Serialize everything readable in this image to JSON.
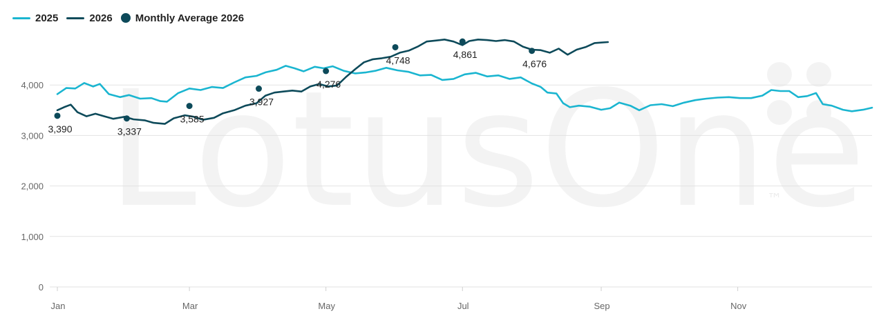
{
  "legend": {
    "label_2025": "2025",
    "label_2026": "2026",
    "label_avg": "Monthly Average 2026"
  },
  "watermark": {
    "text": "LotusOne",
    "tm": "™"
  },
  "colors": {
    "series_2025": "#1ab5d0",
    "series_2026": "#0d4a5a",
    "average": "#0d4a5a",
    "grid": "#e2e2e2",
    "tick_text": "#666666",
    "label_text": "#222222",
    "watermark": "#f3f3f3"
  },
  "chart_data": {
    "type": "line",
    "x_tick_labels": [
      "Jan",
      "Mar",
      "May",
      "Jul",
      "Sep",
      "Nov"
    ],
    "x_tick_dates": [
      "2026-01-01",
      "2026-03-01",
      "2026-05-01",
      "2026-07-01",
      "2026-09-01",
      "2026-11-01"
    ],
    "x_range": [
      "2026-01-01",
      "2026-12-31"
    ],
    "y_ticks": [
      0,
      1000,
      2000,
      3000,
      4000
    ],
    "y_tick_labels": [
      "0",
      "1,000",
      "2,000",
      "3,000",
      "4,000"
    ],
    "ylim": [
      0,
      5000
    ],
    "grid": "horizontal",
    "legend_position": "top-left",
    "series": [
      {
        "name": "2025",
        "points": [
          [
            "2026-01-01",
            3820
          ],
          [
            "2026-01-05",
            3940
          ],
          [
            "2026-01-09",
            3930
          ],
          [
            "2026-01-13",
            4040
          ],
          [
            "2026-01-17",
            3970
          ],
          [
            "2026-01-20",
            4020
          ],
          [
            "2026-01-24",
            3820
          ],
          [
            "2026-01-29",
            3760
          ],
          [
            "2026-02-02",
            3800
          ],
          [
            "2026-02-07",
            3730
          ],
          [
            "2026-02-12",
            3740
          ],
          [
            "2026-02-16",
            3680
          ],
          [
            "2026-02-19",
            3670
          ],
          [
            "2026-02-24",
            3840
          ],
          [
            "2026-03-01",
            3930
          ],
          [
            "2026-03-06",
            3900
          ],
          [
            "2026-03-11",
            3960
          ],
          [
            "2026-03-16",
            3940
          ],
          [
            "2026-03-21",
            4050
          ],
          [
            "2026-03-26",
            4150
          ],
          [
            "2026-03-31",
            4180
          ],
          [
            "2026-04-04",
            4250
          ],
          [
            "2026-04-09",
            4300
          ],
          [
            "2026-04-13",
            4380
          ],
          [
            "2026-04-17",
            4330
          ],
          [
            "2026-04-21",
            4270
          ],
          [
            "2026-04-26",
            4360
          ],
          [
            "2026-04-30",
            4330
          ],
          [
            "2026-05-04",
            4370
          ],
          [
            "2026-05-09",
            4280
          ],
          [
            "2026-05-14",
            4230
          ],
          [
            "2026-05-19",
            4250
          ],
          [
            "2026-05-23",
            4280
          ],
          [
            "2026-05-28",
            4340
          ],
          [
            "2026-06-02",
            4290
          ],
          [
            "2026-06-07",
            4260
          ],
          [
            "2026-06-12",
            4190
          ],
          [
            "2026-06-17",
            4200
          ],
          [
            "2026-06-22",
            4100
          ],
          [
            "2026-06-27",
            4120
          ],
          [
            "2026-07-02",
            4210
          ],
          [
            "2026-07-07",
            4240
          ],
          [
            "2026-07-12",
            4170
          ],
          [
            "2026-07-17",
            4190
          ],
          [
            "2026-07-22",
            4120
          ],
          [
            "2026-07-27",
            4150
          ],
          [
            "2026-08-01",
            4030
          ],
          [
            "2026-08-05",
            3960
          ],
          [
            "2026-08-08",
            3850
          ],
          [
            "2026-08-12",
            3830
          ],
          [
            "2026-08-15",
            3640
          ],
          [
            "2026-08-18",
            3560
          ],
          [
            "2026-08-22",
            3590
          ],
          [
            "2026-08-27",
            3570
          ],
          [
            "2026-09-01",
            3510
          ],
          [
            "2026-09-05",
            3540
          ],
          [
            "2026-09-09",
            3650
          ],
          [
            "2026-09-14",
            3590
          ],
          [
            "2026-09-18",
            3500
          ],
          [
            "2026-09-23",
            3600
          ],
          [
            "2026-09-28",
            3620
          ],
          [
            "2026-10-03",
            3580
          ],
          [
            "2026-10-08",
            3650
          ],
          [
            "2026-10-13",
            3700
          ],
          [
            "2026-10-18",
            3730
          ],
          [
            "2026-10-23",
            3750
          ],
          [
            "2026-10-28",
            3760
          ],
          [
            "2026-11-02",
            3740
          ],
          [
            "2026-11-07",
            3740
          ],
          [
            "2026-11-12",
            3790
          ],
          [
            "2026-11-16",
            3900
          ],
          [
            "2026-11-20",
            3880
          ],
          [
            "2026-11-24",
            3880
          ],
          [
            "2026-11-28",
            3760
          ],
          [
            "2026-12-02",
            3780
          ],
          [
            "2026-12-06",
            3840
          ],
          [
            "2026-12-09",
            3620
          ],
          [
            "2026-12-13",
            3590
          ],
          [
            "2026-12-18",
            3510
          ],
          [
            "2026-12-22",
            3480
          ],
          [
            "2026-12-27",
            3510
          ],
          [
            "2026-12-31",
            3550
          ]
        ]
      },
      {
        "name": "2026",
        "points": [
          [
            "2026-01-01",
            3500
          ],
          [
            "2026-01-04",
            3560
          ],
          [
            "2026-01-07",
            3610
          ],
          [
            "2026-01-10",
            3460
          ],
          [
            "2026-01-14",
            3380
          ],
          [
            "2026-01-18",
            3430
          ],
          [
            "2026-01-22",
            3380
          ],
          [
            "2026-01-26",
            3330
          ],
          [
            "2026-01-31",
            3370
          ],
          [
            "2026-02-04",
            3320
          ],
          [
            "2026-02-09",
            3300
          ],
          [
            "2026-02-13",
            3250
          ],
          [
            "2026-02-18",
            3230
          ],
          [
            "2026-02-22",
            3340
          ],
          [
            "2026-02-27",
            3400
          ],
          [
            "2026-03-03",
            3370
          ],
          [
            "2026-03-07",
            3310
          ],
          [
            "2026-03-12",
            3350
          ],
          [
            "2026-03-16",
            3440
          ],
          [
            "2026-03-21",
            3500
          ],
          [
            "2026-03-26",
            3590
          ],
          [
            "2026-03-31",
            3640
          ],
          [
            "2026-04-04",
            3790
          ],
          [
            "2026-04-08",
            3850
          ],
          [
            "2026-04-12",
            3870
          ],
          [
            "2026-04-16",
            3890
          ],
          [
            "2026-04-20",
            3870
          ],
          [
            "2026-04-24",
            3970
          ],
          [
            "2026-04-28",
            4020
          ],
          [
            "2026-05-02",
            3970
          ],
          [
            "2026-05-06",
            3990
          ],
          [
            "2026-05-10",
            4160
          ],
          [
            "2026-05-14",
            4310
          ],
          [
            "2026-05-18",
            4450
          ],
          [
            "2026-05-22",
            4510
          ],
          [
            "2026-05-26",
            4530
          ],
          [
            "2026-05-30",
            4560
          ],
          [
            "2026-06-03",
            4640
          ],
          [
            "2026-06-07",
            4680
          ],
          [
            "2026-06-11",
            4760
          ],
          [
            "2026-06-15",
            4860
          ],
          [
            "2026-06-19",
            4880
          ],
          [
            "2026-06-23",
            4900
          ],
          [
            "2026-06-27",
            4860
          ],
          [
            "2026-07-01",
            4790
          ],
          [
            "2026-07-04",
            4870
          ],
          [
            "2026-07-08",
            4900
          ],
          [
            "2026-07-12",
            4890
          ],
          [
            "2026-07-16",
            4870
          ],
          [
            "2026-07-20",
            4890
          ],
          [
            "2026-07-24",
            4860
          ],
          [
            "2026-07-28",
            4760
          ],
          [
            "2026-08-01",
            4700
          ],
          [
            "2026-08-05",
            4690
          ],
          [
            "2026-08-09",
            4640
          ],
          [
            "2026-08-13",
            4720
          ],
          [
            "2026-08-17",
            4600
          ],
          [
            "2026-08-21",
            4700
          ],
          [
            "2026-08-25",
            4750
          ],
          [
            "2026-08-29",
            4830
          ],
          [
            "2026-09-01",
            4840
          ],
          [
            "2026-09-04",
            4850
          ]
        ]
      }
    ],
    "monthly_average_2026": {
      "name": "Monthly Average 2026",
      "points": [
        {
          "x": "2026-01-01",
          "y": 3390,
          "label": "3,390"
        },
        {
          "x": "2026-02-01",
          "y": 3337,
          "label": "3,337"
        },
        {
          "x": "2026-03-01",
          "y": 3585,
          "label": "3,585"
        },
        {
          "x": "2026-04-01",
          "y": 3927,
          "label": "3,927"
        },
        {
          "x": "2026-05-01",
          "y": 4276,
          "label": "4,276"
        },
        {
          "x": "2026-06-01",
          "y": 4748,
          "label": "4,748"
        },
        {
          "x": "2026-07-01",
          "y": 4861,
          "label": "4,861"
        },
        {
          "x": "2026-08-01",
          "y": 4676,
          "label": "4,676"
        }
      ]
    }
  }
}
